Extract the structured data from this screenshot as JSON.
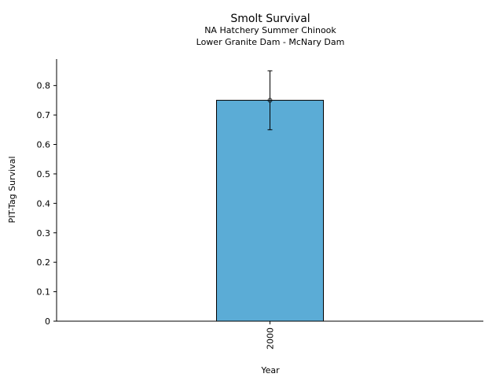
{
  "chart_data": {
    "type": "bar",
    "title": "Smolt Survival",
    "subtitle": [
      "NA Hatchery Summer Chinook",
      "Lower Granite Dam - McNary Dam"
    ],
    "xlabel": "Year",
    "ylabel": "PIT-Tag Survival",
    "categories": [
      "2000"
    ],
    "values": [
      0.75
    ],
    "error_low": [
      0.65
    ],
    "error_high": [
      0.85
    ],
    "ylim": [
      0,
      0.89
    ],
    "yticks": [
      0,
      0.1,
      0.2,
      0.3,
      0.4,
      0.5,
      0.6,
      0.7,
      0.8
    ],
    "ytick_labels": [
      "0",
      "0.1",
      "0.2",
      "0.3",
      "0.4",
      "0.5",
      "0.6",
      "0.7",
      "0.8"
    ],
    "bar_color": "#5BACD6",
    "grid": false
  }
}
